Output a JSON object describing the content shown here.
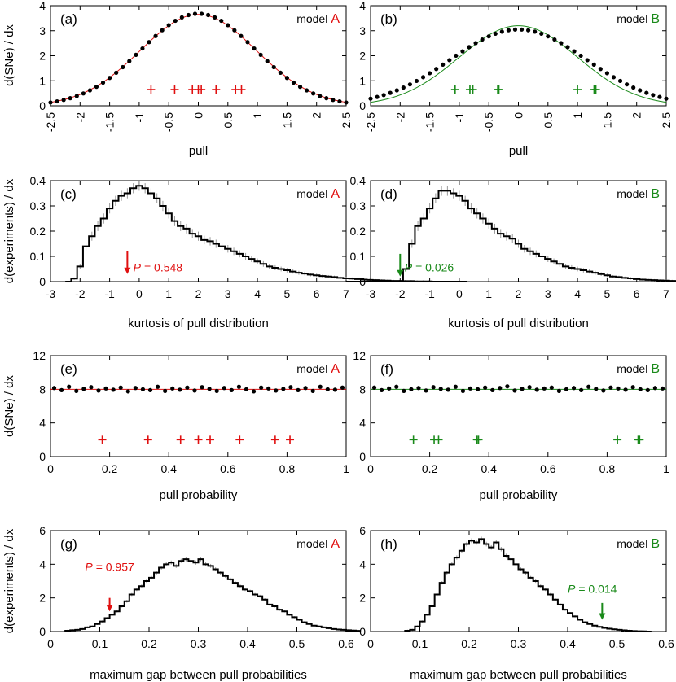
{
  "colors": {
    "model_A": "#e01010",
    "model_B": "#1a8a1a",
    "axis": "#000000",
    "histogram": "#000000",
    "error_bar": "#9a9a9a"
  },
  "figure": {
    "model_label_prefix": "model",
    "row_xlabels": [
      "pull",
      "kurtosis of pull distribution",
      "pull probability",
      "maximum gap between pull probabilities"
    ],
    "row_ylabels": [
      "d(SNe) / dx",
      "d(experiments) / dx",
      "d(SNe) / dx",
      "d(experiments) / dx"
    ]
  },
  "chart_data": [
    {
      "panel": "(a)",
      "model": "A",
      "type": "scatter",
      "xlabel": "pull",
      "ylabel": "d(SNe) / dx",
      "xlim": [
        -2.5,
        2.5
      ],
      "ylim": [
        0,
        4
      ],
      "xticks": [
        -2.5,
        -2,
        -1.5,
        -1,
        -0.5,
        0,
        0.5,
        1,
        1.5,
        2,
        2.5
      ],
      "yticks": [
        0,
        1,
        2,
        3,
        4
      ],
      "x_tick_rotation": "vertical",
      "curve": {
        "kind": "gaussian",
        "amplitude": 3.65,
        "sigma": 0.98
      },
      "points": {
        "kind": "gaussian",
        "amplitude": 3.68,
        "sigma": 0.97,
        "x_start": -2.5,
        "x_end": 2.5,
        "count": 46
      },
      "markers": {
        "x": [
          -0.8,
          -0.4,
          -0.1,
          0.0,
          0.05,
          0.3,
          0.63,
          0.73
        ],
        "y": 0.65
      }
    },
    {
      "panel": "(b)",
      "model": "B",
      "type": "scatter",
      "xlabel": "pull",
      "ylabel": "",
      "xlim": [
        -2.5,
        2.5
      ],
      "ylim": [
        0,
        4
      ],
      "xticks": [
        -2.5,
        -2,
        -1.5,
        -1,
        -0.5,
        0,
        0.5,
        1,
        1.5,
        2,
        2.5
      ],
      "yticks": [
        0,
        1,
        2,
        3,
        4
      ],
      "x_tick_rotation": "vertical",
      "curve": {
        "kind": "gaussian",
        "amplitude": 3.2,
        "sigma": 1.0
      },
      "points": {
        "kind": "gaussian",
        "amplitude": 3.05,
        "sigma": 1.15,
        "x_start": -2.5,
        "x_end": 2.5,
        "count": 46
      },
      "markers": {
        "x": [
          -1.07,
          -0.82,
          -0.77,
          -0.35,
          -0.33,
          1.0,
          1.28,
          1.31
        ],
        "y": 0.65
      }
    },
    {
      "panel": "(c)",
      "model": "A",
      "type": "histogram",
      "xlabel": "kurtosis of pull distribution",
      "ylabel": "d(experiments) / dx",
      "xlim": [
        -3,
        7
      ],
      "ylim": [
        0,
        0.4
      ],
      "xticks": [
        -3,
        -2,
        -1,
        0,
        1,
        2,
        3,
        4,
        5,
        6,
        7
      ],
      "yticks": [
        0,
        0.1,
        0.2,
        0.3,
        0.4
      ],
      "bin_start": -2.5,
      "bin_width": 0.2,
      "values": [
        0.0,
        0.012,
        0.06,
        0.14,
        0.18,
        0.22,
        0.25,
        0.29,
        0.32,
        0.34,
        0.35,
        0.37,
        0.38,
        0.37,
        0.35,
        0.33,
        0.3,
        0.27,
        0.24,
        0.22,
        0.21,
        0.19,
        0.18,
        0.165,
        0.16,
        0.15,
        0.14,
        0.13,
        0.12,
        0.11,
        0.1,
        0.09,
        0.08,
        0.07,
        0.06,
        0.055,
        0.05,
        0.045,
        0.04,
        0.035,
        0.032,
        0.028,
        0.025,
        0.022,
        0.02,
        0.018,
        0.015,
        0.013,
        0.012,
        0.01,
        0.008,
        0.007,
        0.006,
        0.005,
        0.004,
        0.003,
        0.003,
        0.002,
        0.002,
        0.001,
        0.001,
        0.001,
        0.0,
        0.0,
        0.0,
        0.0,
        0.0,
        0.0
      ],
      "arrow": {
        "x": -0.4,
        "y_top": 0.12,
        "y_bottom": 0.03
      },
      "p_value": {
        "symbol": "P",
        "text": "= 0.548",
        "x": -0.2,
        "y": 0.04
      }
    },
    {
      "panel": "(d)",
      "model": "B",
      "type": "histogram",
      "xlabel": "kurtosis of pull distribution",
      "ylabel": "",
      "xlim": [
        -3,
        7
      ],
      "ylim": [
        0,
        0.4
      ],
      "xticks": [
        -3,
        -2,
        -1,
        0,
        1,
        2,
        3,
        4,
        5,
        6,
        7
      ],
      "yticks": [
        0,
        0.1,
        0.2,
        0.3,
        0.4
      ],
      "bin_start": -2.5,
      "bin_width": 0.2,
      "values": [
        0.0,
        0.0,
        0.0,
        0.05,
        0.15,
        0.22,
        0.25,
        0.29,
        0.33,
        0.36,
        0.36,
        0.35,
        0.34,
        0.32,
        0.29,
        0.27,
        0.25,
        0.23,
        0.21,
        0.19,
        0.18,
        0.17,
        0.15,
        0.13,
        0.12,
        0.11,
        0.1,
        0.09,
        0.08,
        0.07,
        0.06,
        0.055,
        0.05,
        0.045,
        0.04,
        0.035,
        0.03,
        0.025,
        0.02,
        0.018,
        0.015,
        0.013,
        0.01,
        0.008,
        0.007,
        0.006,
        0.005,
        0.004,
        0.003,
        0.002,
        0.002,
        0.001,
        0.001,
        0.001,
        0.0,
        0.0,
        0.0,
        0.0,
        0.0,
        0.0,
        0.0,
        0.0,
        0.0,
        0.0,
        0.0,
        0.0,
        0.0,
        0.0
      ],
      "arrow": {
        "x": -2.0,
        "y_top": 0.11,
        "y_bottom": 0.02
      },
      "p_value": {
        "symbol": "P",
        "text": "= 0.026",
        "x": -1.85,
        "y": 0.04
      }
    },
    {
      "panel": "(e)",
      "model": "A",
      "type": "scatter",
      "xlabel": "pull probability",
      "ylabel": "d(SNe) / dx",
      "xlim": [
        0,
        1
      ],
      "ylim": [
        0,
        12
      ],
      "xticks": [
        0,
        0.2,
        0.4,
        0.6,
        0.8,
        1
      ],
      "yticks": [
        0,
        4,
        8,
        12
      ],
      "x_tick_rotation": "horizontal",
      "curve": {
        "kind": "flat",
        "y": 8
      },
      "points": {
        "kind": "flat_dots",
        "y": 8,
        "count": 40,
        "jitter": [
          0.15,
          -0.1,
          0.3,
          -0.2,
          0.05,
          0.25,
          -0.15,
          0.1,
          -0.05,
          0.2,
          -0.25,
          0.15,
          0.0,
          -0.1,
          0.3,
          -0.2,
          0.1,
          -0.05,
          0.2,
          -0.15,
          0.25,
          0.05,
          -0.2,
          0.15,
          -0.1,
          0.3,
          0.0,
          -0.25,
          0.2,
          0.1,
          -0.15,
          0.05,
          0.25,
          -0.1,
          0.15,
          -0.2,
          0.3,
          0.0,
          -0.05,
          0.2
        ]
      },
      "markers": {
        "x": [
          0.175,
          0.33,
          0.44,
          0.5,
          0.54,
          0.64,
          0.76,
          0.81
        ],
        "y": 2
      }
    },
    {
      "panel": "(f)",
      "model": "B",
      "type": "scatter",
      "xlabel": "pull probability",
      "ylabel": "",
      "xlim": [
        0,
        1
      ],
      "ylim": [
        0,
        12
      ],
      "xticks": [
        0,
        0.2,
        0.4,
        0.6,
        0.8,
        1
      ],
      "yticks": [
        0,
        4,
        8,
        12
      ],
      "x_tick_rotation": "horizontal",
      "curve": {
        "kind": "flat",
        "y": 8
      },
      "points": {
        "kind": "flat_dots",
        "y": 8,
        "count": 40,
        "jitter": [
          0.2,
          -0.1,
          0.1,
          0.3,
          -0.2,
          0.0,
          0.15,
          -0.15,
          0.25,
          0.05,
          -0.05,
          0.3,
          -0.2,
          0.1,
          0.0,
          0.2,
          -0.1,
          0.15,
          0.35,
          -0.15,
          0.05,
          0.25,
          -0.05,
          0.1,
          0.2,
          -0.2,
          0.0,
          0.15,
          -0.1,
          0.3,
          0.05,
          -0.15,
          0.2,
          0.1,
          -0.05,
          0.25,
          0.0,
          -0.1,
          0.15,
          0.1
        ]
      },
      "markers": {
        "x": [
          0.145,
          0.215,
          0.23,
          0.36,
          0.365,
          0.835,
          0.905,
          0.91
        ],
        "y": 2
      }
    },
    {
      "panel": "(g)",
      "model": "A",
      "type": "histogram",
      "xlabel": "maximum gap between pull probabilities",
      "ylabel": "d(experiments) / dx",
      "xlim": [
        0,
        0.6
      ],
      "ylim": [
        0,
        6
      ],
      "xticks": [
        0,
        0.1,
        0.2,
        0.3,
        0.4,
        0.5,
        0.6
      ],
      "yticks": [
        0,
        2,
        4,
        6
      ],
      "bin_start": 0.03,
      "bin_width": 0.01,
      "values": [
        0.05,
        0.08,
        0.1,
        0.15,
        0.25,
        0.3,
        0.45,
        0.6,
        0.8,
        1.0,
        1.2,
        1.5,
        1.8,
        2.2,
        2.5,
        2.7,
        3.0,
        3.2,
        3.5,
        3.8,
        4.0,
        4.1,
        3.9,
        4.2,
        4.3,
        4.2,
        4.1,
        4.3,
        4.0,
        3.9,
        3.7,
        3.5,
        3.3,
        3.1,
        2.9,
        2.7,
        2.5,
        2.4,
        2.2,
        2.1,
        1.9,
        1.6,
        1.5,
        1.3,
        1.2,
        1.0,
        0.85,
        0.7,
        0.55,
        0.45,
        0.35,
        0.3,
        0.25,
        0.2,
        0.15,
        0.12,
        0.1,
        0.08,
        0.06,
        0.04
      ],
      "arrow": {
        "x": 0.12,
        "y_top": 2.0,
        "y_bottom": 1.2
      },
      "p_value": {
        "symbol": "P",
        "text": "= 0.957",
        "x": 0.07,
        "y": 3.6
      }
    },
    {
      "panel": "(h)",
      "model": "B",
      "type": "histogram",
      "xlabel": "maximum gap between pull probabilities",
      "ylabel": "",
      "xlim": [
        0,
        0.6
      ],
      "ylim": [
        0,
        6
      ],
      "xticks": [
        0,
        0.1,
        0.2,
        0.3,
        0.4,
        0.5,
        0.6
      ],
      "yticks": [
        0,
        2,
        4,
        6
      ],
      "bin_start": 0.07,
      "bin_width": 0.01,
      "values": [
        0.05,
        0.1,
        0.3,
        0.6,
        1.0,
        1.5,
        2.2,
        2.9,
        3.5,
        4.0,
        4.4,
        4.8,
        5.2,
        5.4,
        5.3,
        5.5,
        5.2,
        5.0,
        5.3,
        4.9,
        4.5,
        4.3,
        4.0,
        3.7,
        3.5,
        3.2,
        3.0,
        2.7,
        2.5,
        2.2,
        1.9,
        1.6,
        1.3,
        1.1,
        0.9,
        0.7,
        0.55,
        0.45,
        0.35,
        0.28,
        0.22,
        0.17,
        0.13,
        0.1,
        0.07,
        0.05,
        0.03,
        0.02,
        0.01,
        0.0
      ],
      "arrow": {
        "x": 0.47,
        "y_top": 1.7,
        "y_bottom": 0.7
      },
      "p_value": {
        "symbol": "P",
        "text": "= 0.014",
        "x": 0.4,
        "y": 2.3
      }
    }
  ]
}
